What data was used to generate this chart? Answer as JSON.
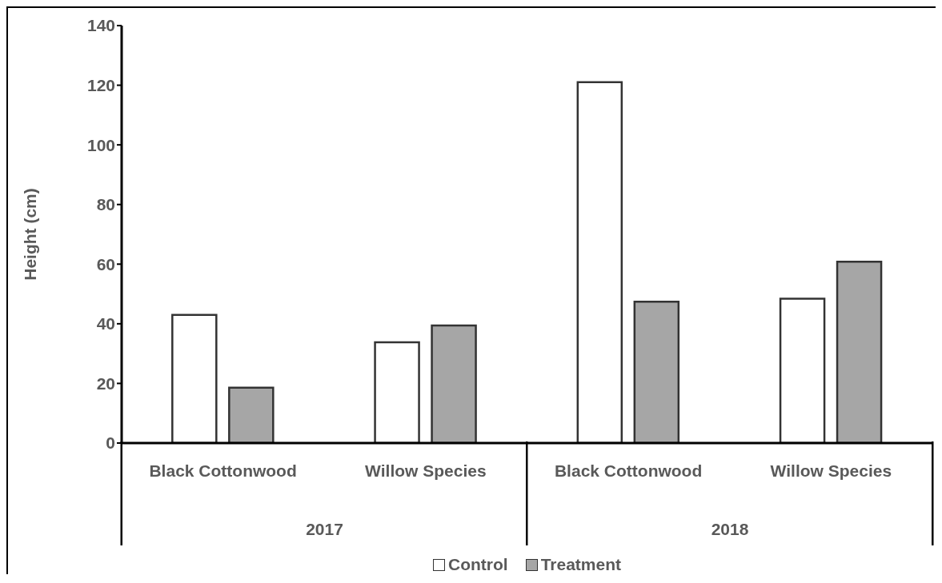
{
  "chart_data": {
    "type": "bar",
    "ylabel": "Height (cm)",
    "categories": [
      "Black Cottonwood",
      "Willow Species",
      "Black Cottonwood",
      "Willow Species"
    ],
    "series": [
      {
        "name": "Control",
        "color": "#ffffff",
        "values": [
          43,
          33.8,
          121,
          48.4
        ]
      },
      {
        "name": "Treatment",
        "color": "#a6a6a6",
        "values": [
          18.6,
          39.4,
          47.4,
          60.8
        ]
      }
    ],
    "annotations": [
      "2017",
      "2018"
    ],
    "ylim": [
      0,
      140
    ],
    "yticks": [
      0,
      20,
      40,
      60,
      80,
      100,
      120,
      140
    ],
    "grid": false,
    "legend": "bottom"
  }
}
